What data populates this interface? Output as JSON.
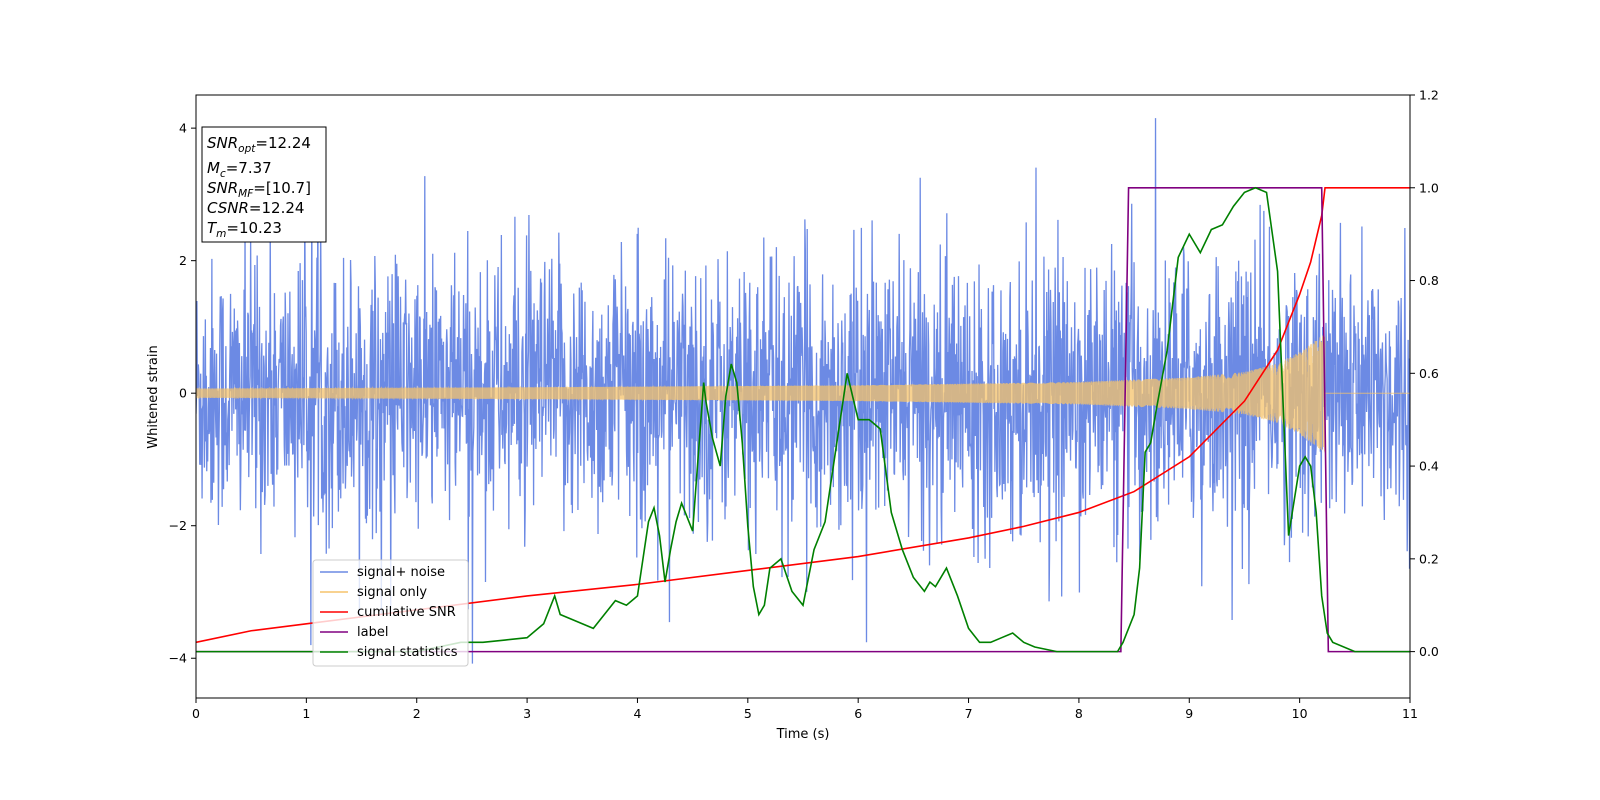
{
  "chart_data": {
    "type": "line",
    "xlabel": "Time (s)",
    "ylabel": "Whitened strain",
    "xlim": [
      0,
      11
    ],
    "ylim": [
      -4.6,
      4.5
    ],
    "y2lim": [
      -0.1,
      1.2
    ],
    "xticks": [
      "0",
      "1",
      "2",
      "3",
      "4",
      "5",
      "6",
      "7",
      "8",
      "9",
      "10",
      "11"
    ],
    "yticks": [
      "-4",
      "-2",
      "0",
      "2",
      "4"
    ],
    "y2ticks": [
      "0.0",
      "0.2",
      "0.4",
      "0.6",
      "0.8",
      "1.0",
      "1.2"
    ],
    "grid": false,
    "legend_position": "lower-left",
    "annotation": {
      "snr_opt": {
        "base": "SNR",
        "sub": "opt",
        "value": "=12.24"
      },
      "mc": {
        "base": "M",
        "sub": "c",
        "value": "=7.37"
      },
      "snr_mf": {
        "base": "SNR",
        "sub": "MF",
        "value": "=[10.7]"
      },
      "csnr": {
        "base": "CSNR",
        "value": "=12.24"
      },
      "tm": {
        "base": "T",
        "sub": "m",
        "value": "=10.23"
      }
    },
    "series": [
      {
        "name": "signal+ noise",
        "axis": "left",
        "color": "#6c8ae4",
        "kind": "noise",
        "amplitude_sigma": 1.0,
        "x_range": [
          0,
          11
        ]
      },
      {
        "name": "signal only",
        "axis": "left",
        "color": "#f5c36b",
        "kind": "chirp",
        "envelope_x": [
          0,
          3,
          6,
          8,
          9,
          9.5,
          9.8,
          10.0,
          10.15,
          10.23
        ],
        "envelope_y": [
          0.07,
          0.09,
          0.12,
          0.17,
          0.24,
          0.32,
          0.45,
          0.62,
          0.8,
          0.9
        ],
        "x_end": 10.23
      },
      {
        "name": "cumilative SNR",
        "axis": "right",
        "color": "#ff0000",
        "x": [
          0,
          0.5,
          1,
          2,
          3,
          4,
          5,
          6,
          7,
          7.5,
          8,
          8.5,
          9,
          9.5,
          9.8,
          10,
          10.1,
          10.2,
          10.23,
          10.24,
          10.3,
          11
        ],
        "values": [
          0.02,
          0.045,
          0.06,
          0.09,
          0.12,
          0.145,
          0.175,
          0.205,
          0.245,
          0.27,
          0.3,
          0.345,
          0.42,
          0.54,
          0.65,
          0.77,
          0.84,
          0.94,
          1.0,
          1.0,
          1.0,
          1.0
        ]
      },
      {
        "name": "label",
        "axis": "right",
        "color": "#800080",
        "x": [
          0,
          8.38,
          8.45,
          10.2,
          10.26,
          11
        ],
        "values": [
          0.0,
          0.0,
          1.0,
          1.0,
          0.0,
          0.0
        ]
      },
      {
        "name": "signal statistics",
        "axis": "right",
        "color": "#008000",
        "x": [
          0,
          1,
          2,
          2.4,
          2.6,
          2.8,
          3.0,
          3.15,
          3.25,
          3.3,
          3.4,
          3.5,
          3.6,
          3.7,
          3.8,
          3.9,
          4.0,
          4.1,
          4.15,
          4.2,
          4.25,
          4.3,
          4.35,
          4.4,
          4.5,
          4.6,
          4.62,
          4.68,
          4.75,
          4.8,
          4.85,
          4.9,
          4.95,
          5.0,
          5.05,
          5.1,
          5.15,
          5.2,
          5.3,
          5.4,
          5.5,
          5.6,
          5.7,
          5.8,
          5.9,
          6.0,
          6.1,
          6.2,
          6.3,
          6.4,
          6.5,
          6.6,
          6.65,
          6.7,
          6.8,
          6.9,
          7.0,
          7.1,
          7.2,
          7.3,
          7.4,
          7.5,
          7.6,
          7.8,
          8.0,
          8.2,
          8.3,
          8.35,
          8.4,
          8.5,
          8.55,
          8.6,
          8.65,
          8.7,
          8.8,
          8.9,
          9.0,
          9.1,
          9.2,
          9.3,
          9.4,
          9.5,
          9.6,
          9.7,
          9.8,
          9.9,
          10.0,
          10.05,
          10.1,
          10.15,
          10.2,
          10.25,
          10.3,
          10.5,
          11
        ],
        "values": [
          0.0,
          0.0,
          0.0,
          0.02,
          0.02,
          0.025,
          0.03,
          0.06,
          0.12,
          0.08,
          0.07,
          0.06,
          0.05,
          0.08,
          0.11,
          0.1,
          0.12,
          0.28,
          0.31,
          0.25,
          0.15,
          0.22,
          0.28,
          0.32,
          0.26,
          0.58,
          0.54,
          0.46,
          0.4,
          0.55,
          0.62,
          0.58,
          0.45,
          0.27,
          0.14,
          0.08,
          0.1,
          0.18,
          0.2,
          0.13,
          0.1,
          0.22,
          0.28,
          0.44,
          0.6,
          0.5,
          0.5,
          0.48,
          0.3,
          0.22,
          0.16,
          0.13,
          0.15,
          0.14,
          0.18,
          0.12,
          0.05,
          0.02,
          0.02,
          0.03,
          0.04,
          0.02,
          0.01,
          0.0,
          0.0,
          0.0,
          0.0,
          0.0,
          0.02,
          0.08,
          0.18,
          0.43,
          0.45,
          0.52,
          0.65,
          0.85,
          0.9,
          0.86,
          0.91,
          0.92,
          0.96,
          0.99,
          1.0,
          0.99,
          0.82,
          0.25,
          0.4,
          0.42,
          0.4,
          0.3,
          0.12,
          0.04,
          0.02,
          0.0,
          0.0
        ]
      }
    ]
  }
}
